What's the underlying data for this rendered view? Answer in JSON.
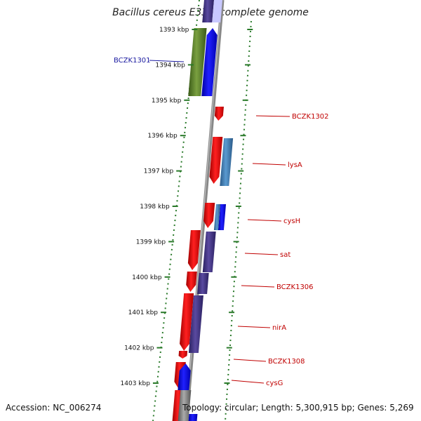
{
  "title": "Bacillus cereus E33L, complete genome",
  "footer": {
    "accession": "Accession: NC_006274",
    "topology": "Topology: circular; Length: 5,300,915 bp; Genes: 5,269"
  },
  "colors": {
    "tick": "#2a7a2a",
    "left_label": "#1a1aa0",
    "right_label": "#c00000",
    "backbone": "#888888"
  },
  "ticks": [
    "1393 kbp",
    "1394 kbp",
    "1395 kbp",
    "1396 kbp",
    "1397 kbp",
    "1398 kbp",
    "1399 kbp",
    "1400 kbp",
    "1401 kbp",
    "1402 kbp",
    "1403 kbp"
  ],
  "gene_labels": {
    "left": [
      "BCZK1301"
    ],
    "right": [
      "BCZK1302",
      "lysA",
      "cysH",
      "sat",
      "BCZK1306",
      "nirA",
      "BCZK1308",
      "cysG"
    ]
  }
}
